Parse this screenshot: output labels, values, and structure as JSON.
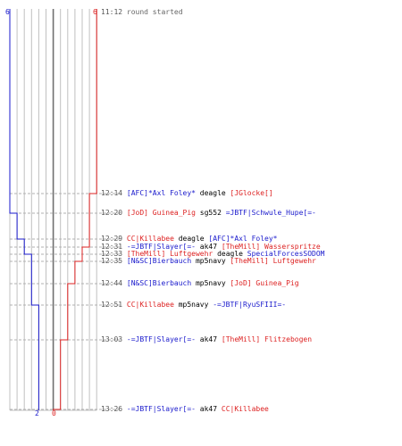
{
  "score": {
    "blue_start": "6",
    "red_start": "6",
    "blue_end": "2",
    "red_end": "0",
    "blue_color": "#1a1acc",
    "red_color": "#dd2222"
  },
  "events": [
    {
      "time": "11:12",
      "text": "round started",
      "kind": "start"
    },
    {
      "time": "12:14",
      "killer": "[AFC]*Axl Foley*",
      "killer_team": "blue",
      "weapon": "deagle",
      "victim": "[JGlocke[]",
      "victim_team": "red"
    },
    {
      "time": "12:20",
      "killer": "[JoD] Guinea_Pig",
      "killer_team": "red",
      "weapon": "sg552",
      "victim": "=JBTF|Schwule_Hupe[=-",
      "victim_team": "blue"
    },
    {
      "time": "12:29",
      "killer": "CC|Killabee",
      "killer_team": "red",
      "weapon": "deagle",
      "victim": "[AFC]*Axl Foley*",
      "victim_team": "blue"
    },
    {
      "time": "12:31",
      "killer": "-=JBTF|Slayer[=-",
      "killer_team": "blue",
      "weapon": "ak47",
      "victim": "[TheMill] Wasserspritze",
      "victim_team": "red"
    },
    {
      "time": "12:33",
      "killer": "[TheMill] Luftgewehr",
      "killer_team": "red",
      "weapon": "deagle",
      "victim": "SpecialForcesSODOM",
      "victim_team": "blue"
    },
    {
      "time": "12:35",
      "killer": "[N&SC]Bierbauch",
      "killer_team": "blue",
      "weapon": "mp5navy",
      "victim": "[TheMill] Luftgewehr",
      "victim_team": "red"
    },
    {
      "time": "12:44",
      "killer": "[N&SC]Bierbauch",
      "killer_team": "blue",
      "weapon": "mp5navy",
      "victim": "[JoD] Guinea_Pig",
      "victim_team": "red"
    },
    {
      "time": "12:51",
      "killer": "CC|Killabee",
      "killer_team": "red",
      "weapon": "mp5navy",
      "victim": "-=JBTF|RyuSFIII=-",
      "victim_team": "blue"
    },
    {
      "time": "13:03",
      "killer": "-=JBTF|Slayer[=-",
      "killer_team": "blue",
      "weapon": "ak47",
      "victim": "[TheMill] Flitzebogen",
      "victim_team": "red"
    },
    {
      "time": "13:26",
      "killer": "-=JBTF|Slayer[=-",
      "killer_team": "blue",
      "weapon": "ak47",
      "victim": "CC|Killabee",
      "victim_team": "red"
    }
  ]
}
